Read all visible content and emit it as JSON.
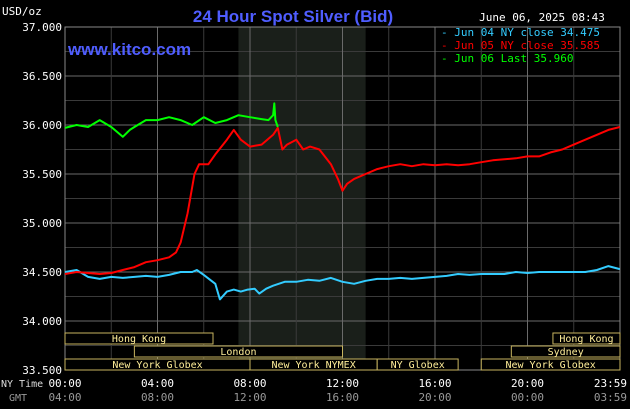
{
  "chart_data": {
    "type": "line",
    "title": "24 Hour Spot Silver (Bid)",
    "watermark": "www.kitco.com",
    "datetime": "June 06, 2025 08:43",
    "y_unit": "USD/oz",
    "ylim": [
      33.5,
      37.0
    ],
    "yticks": [
      "37.000",
      "36.500",
      "36.000",
      "35.500",
      "35.000",
      "34.500",
      "34.000",
      "33.500"
    ],
    "grid": true,
    "legend_position": "top-right",
    "x_row_label_ny": "NY Time",
    "x_row_label_gmt": "GMT",
    "x_ticks_ny": [
      "00:00",
      "04:00",
      "08:00",
      "12:00",
      "16:00",
      "20:00",
      "23:59"
    ],
    "x_ticks_gmt": [
      "04:00",
      "08:00",
      "12:00",
      "16:00",
      "20:00",
      "00:00",
      "03:59"
    ],
    "sessions": [
      {
        "label": "Hong Kong",
        "start_h": 0.0,
        "end_h": 6.4,
        "row": 1
      },
      {
        "label": "Hong Kong",
        "start_h": 21.1,
        "end_h": 24.0,
        "row": 1
      },
      {
        "label": "London",
        "start_h": 3.0,
        "end_h": 12.0,
        "row": 2
      },
      {
        "label": "Sydney",
        "start_h": 19.3,
        "end_h": 24.0,
        "row": 2
      },
      {
        "label": "New York Globex",
        "start_h": 0.0,
        "end_h": 8.0,
        "row": 3
      },
      {
        "label": "New York NYMEX",
        "start_h": 8.0,
        "end_h": 13.5,
        "row": 3
      },
      {
        "label": "NY Globex",
        "start_h": 13.5,
        "end_h": 17.0,
        "row": 3
      },
      {
        "label": "New York Globex",
        "start_h": 18.0,
        "end_h": 24.0,
        "row": 3
      }
    ],
    "highlight_hours": [
      7.5,
      13.0
    ],
    "series": [
      {
        "name": "Jun 04 NY close 34.475",
        "color": "#33ccff",
        "points": [
          [
            0,
            34.5
          ],
          [
            0.5,
            34.52
          ],
          [
            1,
            34.45
          ],
          [
            1.5,
            34.43
          ],
          [
            2,
            34.45
          ],
          [
            2.5,
            34.44
          ],
          [
            3,
            34.45
          ],
          [
            3.5,
            34.46
          ],
          [
            4,
            34.45
          ],
          [
            4.5,
            34.47
          ],
          [
            5,
            34.5
          ],
          [
            5.5,
            34.5
          ],
          [
            5.7,
            34.52
          ],
          [
            6,
            34.47
          ],
          [
            6.5,
            34.38
          ],
          [
            6.7,
            34.22
          ],
          [
            7,
            34.3
          ],
          [
            7.3,
            34.32
          ],
          [
            7.6,
            34.3
          ],
          [
            7.9,
            34.32
          ],
          [
            8.2,
            34.33
          ],
          [
            8.4,
            34.28
          ],
          [
            8.7,
            34.33
          ],
          [
            9,
            34.36
          ],
          [
            9.5,
            34.4
          ],
          [
            10,
            34.4
          ],
          [
            10.5,
            34.42
          ],
          [
            11,
            34.41
          ],
          [
            11.5,
            34.44
          ],
          [
            12,
            34.4
          ],
          [
            12.5,
            34.38
          ],
          [
            13,
            34.41
          ],
          [
            13.5,
            34.43
          ],
          [
            14,
            34.43
          ],
          [
            14.5,
            34.44
          ],
          [
            15,
            34.43
          ],
          [
            15.5,
            34.44
          ],
          [
            16,
            34.45
          ],
          [
            16.5,
            34.46
          ],
          [
            17,
            34.48
          ],
          [
            17.5,
            34.47
          ],
          [
            18,
            34.48
          ],
          [
            18.5,
            34.48
          ],
          [
            19,
            34.48
          ],
          [
            19.5,
            34.5
          ],
          [
            20,
            34.49
          ],
          [
            20.5,
            34.5
          ],
          [
            21,
            34.5
          ],
          [
            21.5,
            34.5
          ],
          [
            22,
            34.5
          ],
          [
            22.5,
            34.5
          ],
          [
            23,
            34.52
          ],
          [
            23.5,
            34.56
          ],
          [
            23.99,
            34.53
          ]
        ]
      },
      {
        "name": "Jun 05 NY close 35.585",
        "color": "#ff0000",
        "points": [
          [
            0,
            34.48
          ],
          [
            0.5,
            34.5
          ],
          [
            1,
            34.49
          ],
          [
            1.5,
            34.48
          ],
          [
            2,
            34.49
          ],
          [
            2.5,
            34.52
          ],
          [
            3,
            34.55
          ],
          [
            3.5,
            34.6
          ],
          [
            4,
            34.62
          ],
          [
            4.5,
            34.65
          ],
          [
            4.8,
            34.7
          ],
          [
            5,
            34.8
          ],
          [
            5.3,
            35.1
          ],
          [
            5.6,
            35.5
          ],
          [
            5.8,
            35.6
          ],
          [
            6.2,
            35.6
          ],
          [
            6.5,
            35.7
          ],
          [
            7,
            35.85
          ],
          [
            7.3,
            35.95
          ],
          [
            7.6,
            35.85
          ],
          [
            8,
            35.78
          ],
          [
            8.5,
            35.8
          ],
          [
            9,
            35.9
          ],
          [
            9.2,
            35.97
          ],
          [
            9.4,
            35.75
          ],
          [
            9.6,
            35.8
          ],
          [
            10,
            35.85
          ],
          [
            10.3,
            35.75
          ],
          [
            10.6,
            35.78
          ],
          [
            11,
            35.75
          ],
          [
            11.5,
            35.6
          ],
          [
            11.8,
            35.45
          ],
          [
            12,
            35.33
          ],
          [
            12.2,
            35.4
          ],
          [
            12.5,
            35.45
          ],
          [
            13,
            35.5
          ],
          [
            13.5,
            35.55
          ],
          [
            14,
            35.58
          ],
          [
            14.5,
            35.6
          ],
          [
            15,
            35.58
          ],
          [
            15.5,
            35.6
          ],
          [
            16,
            35.59
          ],
          [
            16.5,
            35.6
          ],
          [
            17,
            35.59
          ],
          [
            17.5,
            35.6
          ],
          [
            18,
            35.62
          ],
          [
            18.5,
            35.64
          ],
          [
            19,
            35.65
          ],
          [
            19.5,
            35.66
          ],
          [
            20,
            35.68
          ],
          [
            20.5,
            35.68
          ],
          [
            21,
            35.72
          ],
          [
            21.5,
            35.75
          ],
          [
            22,
            35.8
          ],
          [
            22.5,
            35.85
          ],
          [
            23,
            35.9
          ],
          [
            23.5,
            35.95
          ],
          [
            23.99,
            35.98
          ]
        ]
      },
      {
        "name": "Jun 06 Last 35.960",
        "color": "#00ff00",
        "points": [
          [
            0,
            35.97
          ],
          [
            0.5,
            36.0
          ],
          [
            1,
            35.98
          ],
          [
            1.5,
            36.05
          ],
          [
            2,
            35.98
          ],
          [
            2.5,
            35.88
          ],
          [
            2.8,
            35.95
          ],
          [
            3,
            35.98
          ],
          [
            3.5,
            36.05
          ],
          [
            4,
            36.05
          ],
          [
            4.5,
            36.08
          ],
          [
            5,
            36.05
          ],
          [
            5.5,
            36.0
          ],
          [
            6,
            36.08
          ],
          [
            6.5,
            36.02
          ],
          [
            7,
            36.05
          ],
          [
            7.5,
            36.1
          ],
          [
            8,
            36.08
          ],
          [
            8.5,
            36.06
          ],
          [
            8.8,
            36.05
          ],
          [
            9,
            36.1
          ],
          [
            9.05,
            36.22
          ],
          [
            9.1,
            36.05
          ],
          [
            9.2,
            35.98
          ]
        ]
      }
    ]
  }
}
